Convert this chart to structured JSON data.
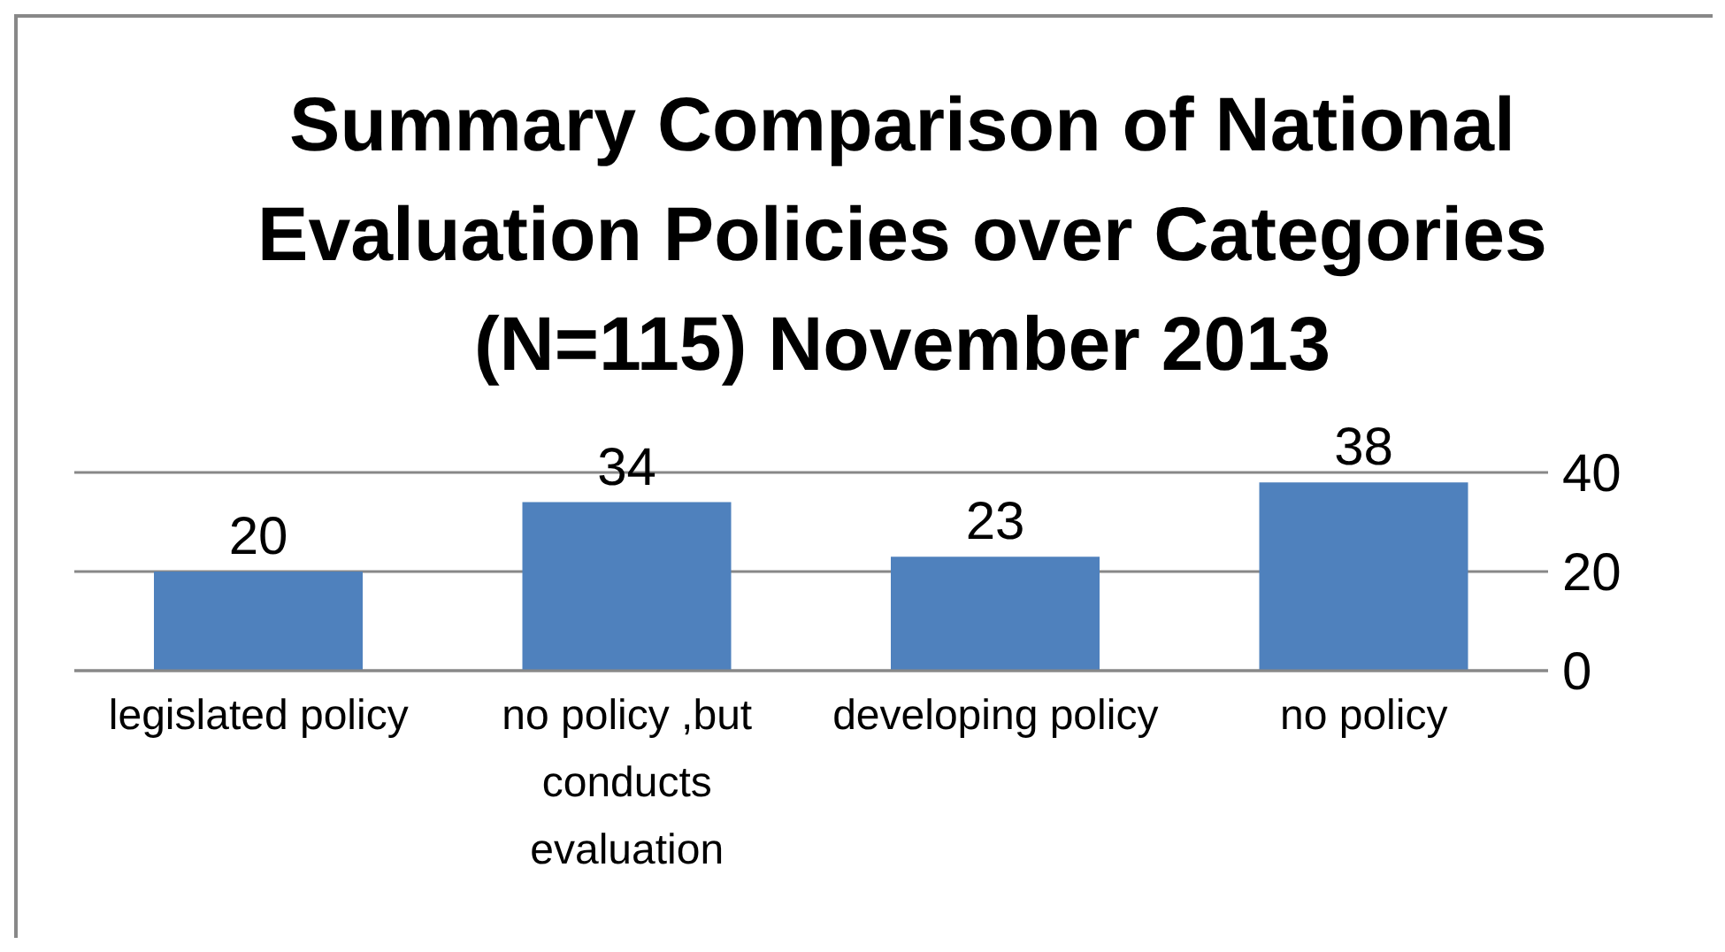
{
  "chart_data": {
    "type": "bar",
    "title": "Summary Comparison of National Evaluation Policies over Categories (N=115) November 2013",
    "categories": [
      "legislated policy",
      "no policy ,but conducts evaluation",
      "developing policy",
      "no policy"
    ],
    "values": [
      20,
      34,
      23,
      38
    ],
    "color": "#4f81bd",
    "ylim": [
      0,
      40
    ],
    "yticks": [
      0,
      20,
      40
    ],
    "grid": "y",
    "data_labels": true
  }
}
